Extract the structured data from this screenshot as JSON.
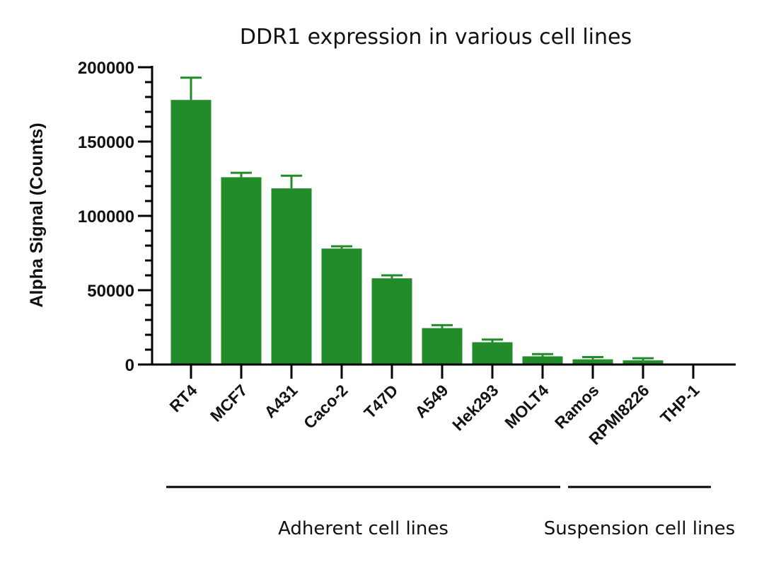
{
  "chart_data": {
    "type": "bar",
    "title": "DDR1 expression in various cell lines",
    "ylabel": "Alpha Signal (Counts)",
    "xlabel": "",
    "ylim": [
      0,
      200000
    ],
    "yticks": [
      0,
      50000,
      100000,
      150000,
      200000
    ],
    "y_minor_ticks_per_major": 5,
    "categories": [
      "RT4",
      "MCF7",
      "A431",
      "Caco-2",
      "T47D",
      "A549",
      "Hek293",
      "MOLT4",
      "Ramos",
      "RPMI8226",
      "THP-1"
    ],
    "values": [
      178000,
      126000,
      118500,
      78000,
      58000,
      24500,
      15000,
      5500,
      3500,
      2800,
      0
    ],
    "error_upper": [
      193000,
      129000,
      127000,
      79500,
      60000,
      26500,
      16800,
      7000,
      5000,
      4200,
      0
    ],
    "bar_color": "#228B2A",
    "groups": [
      {
        "label": "Adherent cell lines",
        "start_category": "RT4",
        "end_category": "MOLT4"
      },
      {
        "label": "Suspension cell lines",
        "start_category": "Ramos",
        "end_category": "THP-1"
      }
    ],
    "grid": false,
    "legend": "none"
  }
}
